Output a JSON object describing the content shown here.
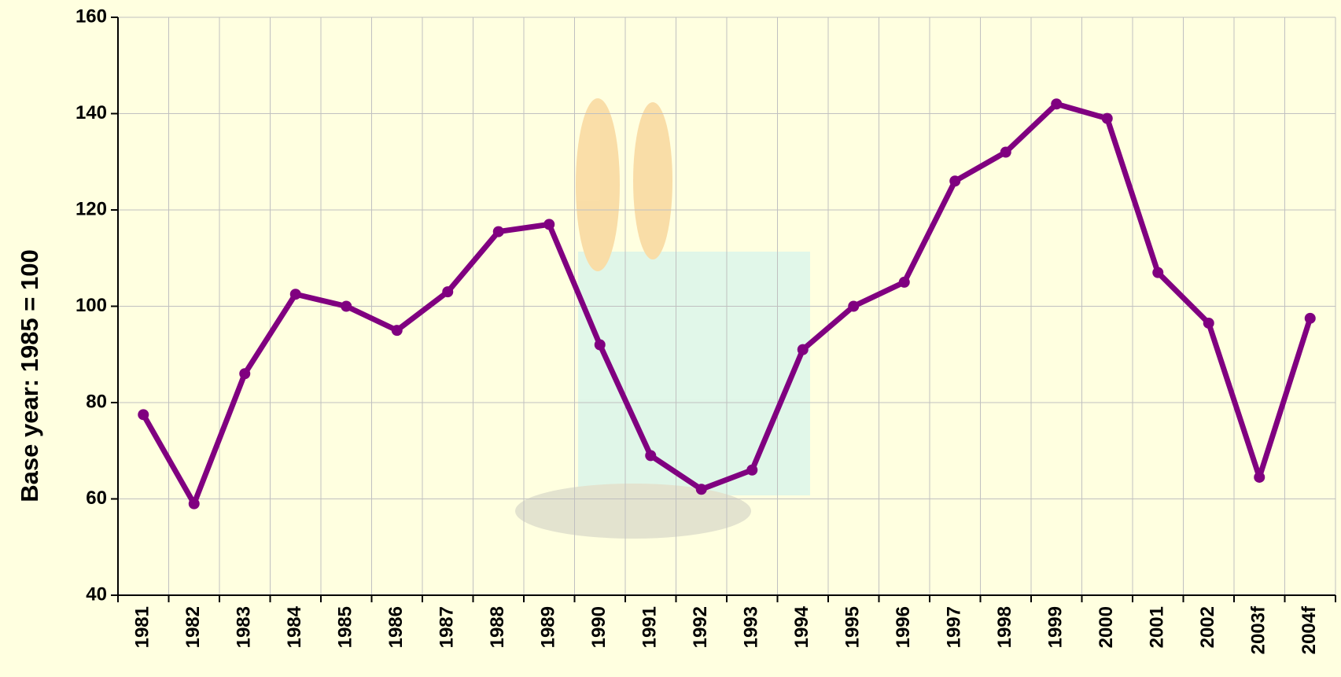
{
  "chart_data": {
    "type": "line",
    "y_label": "Base year: 1985 = 100",
    "categories": [
      "1981",
      "1982",
      "1983",
      "1984",
      "1985",
      "1986",
      "1987",
      "1988",
      "1989",
      "1990",
      "1991",
      "1992",
      "1993",
      "1994",
      "1995",
      "1996",
      "1997",
      "1998",
      "1999",
      "2000",
      "2001",
      "2002",
      "2003f",
      "2004f"
    ],
    "series": [
      {
        "color": "#800080",
        "values": [
          77.5,
          59,
          86,
          102.5,
          100,
          95,
          103,
          115.5,
          117,
          92,
          69,
          62,
          66,
          91,
          100,
          105,
          126,
          132,
          142,
          139,
          107,
          96.5,
          64.5,
          97.5
        ]
      }
    ],
    "ylim": [
      40,
      160
    ],
    "yticks": [
      40,
      60,
      80,
      100,
      120,
      140,
      160
    ],
    "grid": true
  }
}
